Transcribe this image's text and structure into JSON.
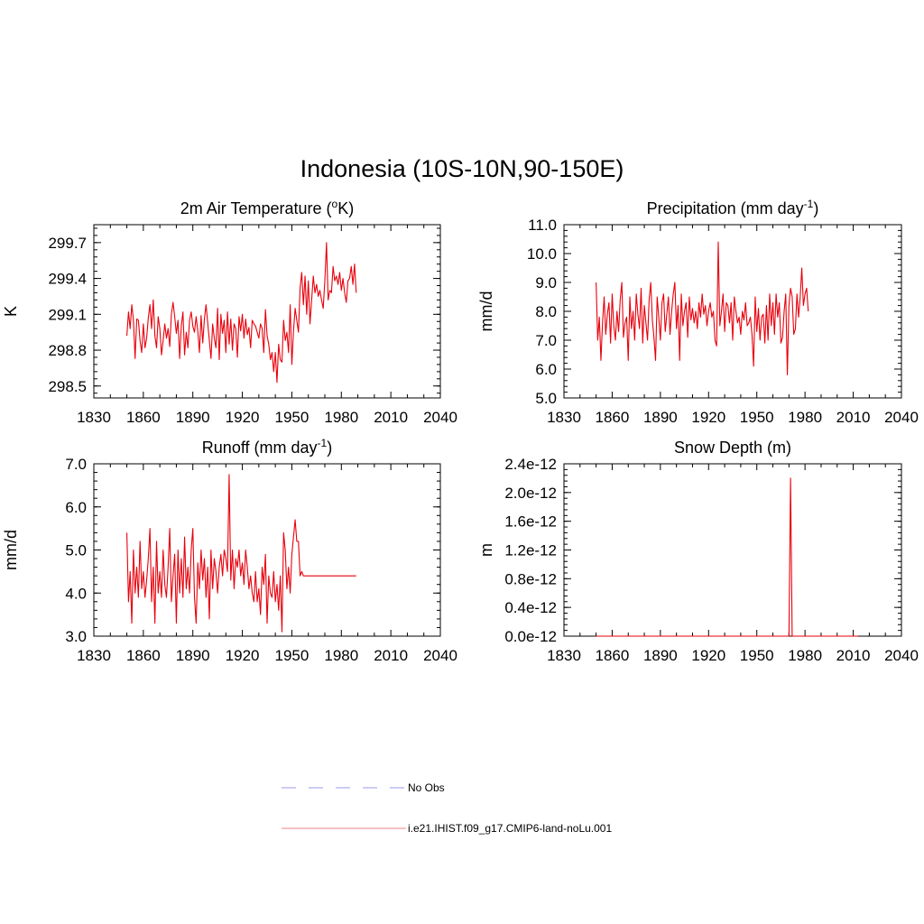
{
  "figure": {
    "title": "Indonesia (10S-10N,90-150E)"
  },
  "legend": {
    "entries": [
      {
        "label": "No Obs",
        "color": "#9999ee",
        "style": "dashed"
      },
      {
        "label": "i.e21.IHIST.f09_g17.CMIP6-land-noLu.001",
        "color": "#f08080",
        "style": "solid"
      }
    ]
  },
  "chart_data": [
    {
      "type": "line",
      "title": "2m Air Temperature (",
      "title_unit": "K)",
      "title_sup": "o",
      "xlabel": "",
      "ylabel": "K",
      "xlim": [
        1830,
        2040
      ],
      "ylim": [
        298.4,
        299.85
      ],
      "xticks": [
        1830,
        1860,
        1890,
        1920,
        1950,
        1980,
        2010,
        2040
      ],
      "yticks": [
        298.5,
        298.8,
        299.1,
        299.4,
        299.7
      ],
      "ytick_labels": [
        "298.5",
        "298.8",
        "299.1",
        "299.4",
        "299.7"
      ],
      "grid": false,
      "series": [
        {
          "color": "#e8000b",
          "x_start": 1850,
          "values": [
            298.92,
            299.12,
            298.98,
            299.18,
            299.05,
            298.73,
            299.06,
            299.05,
            298.88,
            298.78,
            299.02,
            298.82,
            298.9,
            299.07,
            299.18,
            298.98,
            299.22,
            298.92,
            298.82,
            299.08,
            298.98,
            298.76,
            298.88,
            299.02,
            298.9,
            298.98,
            298.83,
            299.1,
            299.2,
            299.08,
            298.94,
            299.05,
            298.73,
            299.0,
            299.12,
            298.76,
            298.95,
            298.82,
            299.05,
            299.12,
            299.0,
            298.95,
            299.08,
            298.96,
            298.78,
            299.09,
            298.86,
            299.06,
            299.18,
            299.03,
            298.88,
            298.73,
            299.02,
            298.9,
            298.82,
            299.15,
            298.72,
            299.1,
            298.94,
            299.05,
            298.78,
            299.12,
            298.85,
            299.06,
            298.8,
            299.02,
            298.98,
            298.74,
            299.08,
            298.96,
            299.1,
            298.9,
            299.06,
            298.93,
            298.99,
            298.82,
            299.05,
            299.02,
            299.0,
            298.95,
            298.9,
            299.02,
            298.98,
            298.78,
            299.14,
            298.92,
            298.85,
            298.72,
            298.78,
            298.62,
            298.78,
            298.53,
            298.85,
            298.72,
            298.7,
            299.05,
            298.88,
            298.95,
            298.78,
            299.18,
            298.68,
            298.96,
            299.15,
            299.05,
            298.95,
            299.32,
            299.45,
            299.18,
            299.42,
            299.1,
            299.38,
            299.02,
            299.22,
            299.42,
            299.28,
            299.35,
            299.25,
            299.3,
            299.22,
            299.15,
            299.38,
            299.7,
            299.22,
            299.3,
            299.28,
            299.5,
            299.38,
            299.42,
            299.35,
            299.45,
            299.3,
            299.4,
            299.28,
            299.2,
            299.38,
            299.4,
            299.5,
            299.35,
            299.52,
            299.28
          ]
        }
      ]
    },
    {
      "type": "line",
      "title": "Precipitation (mm day",
      "title_unit": ")",
      "title_sup": "-1",
      "xlabel": "",
      "ylabel": "mm/d",
      "xlim": [
        1830,
        2040
      ],
      "ylim": [
        5.0,
        11.0
      ],
      "xticks": [
        1830,
        1860,
        1890,
        1920,
        1950,
        1980,
        2010,
        2040
      ],
      "yticks": [
        5.0,
        6.0,
        7.0,
        8.0,
        9.0,
        10.0,
        11.0
      ],
      "ytick_labels": [
        "5.0",
        "6.0",
        "7.0",
        "8.0",
        "9.0",
        "10.0",
        "11.0"
      ],
      "grid": false,
      "series": [
        {
          "color": "#e8000b",
          "x_start": 1850,
          "values": [
            9.0,
            7.0,
            7.8,
            6.3,
            7.6,
            8.5,
            7.2,
            7.9,
            8.3,
            6.9,
            8.6,
            7.5,
            7.0,
            8.0,
            7.3,
            8.4,
            9.0,
            7.1,
            7.6,
            7.8,
            6.3,
            8.5,
            7.4,
            8.0,
            7.0,
            8.6,
            7.9,
            7.4,
            8.8,
            6.9,
            8.2,
            7.6,
            7.0,
            8.4,
            9.0,
            7.7,
            7.1,
            6.3,
            8.5,
            7.8,
            7.0,
            8.3,
            8.6,
            7.3,
            7.9,
            8.5,
            7.2,
            8.0,
            8.6,
            9.0,
            7.4,
            8.2,
            6.3,
            8.6,
            7.5,
            8.0,
            8.3,
            7.1,
            8.5,
            7.7,
            8.1,
            7.6,
            8.0,
            7.4,
            8.3,
            7.8,
            8.6,
            7.9,
            8.2,
            7.5,
            8.0,
            8.3,
            7.8,
            8.0,
            7.0,
            6.8,
            10.4,
            7.5,
            8.0,
            8.6,
            7.3,
            8.3,
            8.2,
            7.6,
            8.3,
            7.0,
            8.5,
            8.0,
            7.6,
            7.8,
            7.2,
            8.0,
            7.7,
            8.3,
            7.5,
            7.6,
            7.8,
            7.2,
            6.1,
            8.5,
            7.3,
            8.1,
            7.0,
            7.8,
            7.9,
            6.9,
            8.2,
            7.0,
            8.6,
            7.5,
            8.3,
            7.2,
            8.6,
            7.8,
            8.3,
            6.9,
            7.1,
            8.0,
            8.6,
            5.8,
            8.2,
            8.8,
            8.5,
            7.2,
            7.4,
            8.6,
            7.8,
            8.5,
            9.5,
            8.2,
            8.6,
            8.8,
            8.0
          ]
        }
      ]
    },
    {
      "type": "line",
      "title": "Runoff (mm day",
      "title_unit": ")",
      "title_sup": "-1",
      "xlabel": "",
      "ylabel": "mm/d",
      "xlim": [
        1830,
        2040
      ],
      "ylim": [
        3.0,
        7.0
      ],
      "xticks": [
        1830,
        1860,
        1890,
        1920,
        1950,
        1980,
        2010,
        2040
      ],
      "yticks": [
        3.0,
        4.0,
        5.0,
        6.0,
        7.0
      ],
      "ytick_labels": [
        "3.0",
        "4.0",
        "5.0",
        "6.0",
        "7.0"
      ],
      "grid": false,
      "series": [
        {
          "color": "#e8000b",
          "x_start": 1850,
          "values": [
            5.4,
            3.8,
            4.5,
            3.3,
            5.0,
            4.0,
            4.6,
            3.9,
            5.2,
            4.1,
            4.5,
            3.9,
            4.3,
            4.8,
            5.5,
            3.8,
            4.6,
            3.3,
            5.2,
            4.0,
            4.5,
            3.9,
            5.0,
            4.2,
            3.9,
            4.6,
            5.5,
            3.8,
            4.4,
            4.9,
            3.3,
            5.0,
            4.0,
            4.8,
            3.9,
            5.3,
            4.1,
            4.6,
            4.0,
            5.0,
            5.5,
            3.9,
            3.3,
            4.7,
            4.1,
            5.0,
            4.3,
            4.8,
            3.9,
            4.6,
            3.4,
            5.0,
            4.1,
            4.8,
            4.5,
            4.0,
            4.6,
            4.9,
            4.4,
            5.0,
            4.8,
            4.5,
            6.75,
            4.3,
            5.0,
            4.1,
            4.8,
            4.6,
            5.0,
            4.4,
            4.7,
            4.2,
            5.0,
            4.6,
            4.1,
            4.4,
            4.0,
            3.8,
            4.5,
            3.8,
            4.1,
            3.5,
            4.6,
            4.2,
            4.9,
            3.3,
            4.4,
            4.0,
            3.9,
            4.5,
            3.8,
            4.2,
            3.6,
            4.4,
            3.1,
            5.4,
            5.0,
            4.1,
            4.6,
            4.0,
            4.9,
            5.3,
            5.7,
            5.2,
            5.2,
            4.4,
            4.5,
            4.4,
            4.4,
            4.4,
            4.4,
            4.4,
            4.4,
            4.4,
            4.4,
            4.4,
            4.4,
            4.4,
            4.4,
            4.4,
            4.4,
            4.4,
            4.4,
            4.4,
            4.4,
            4.4,
            4.4,
            4.4,
            4.4,
            4.4,
            4.4,
            4.4,
            4.4,
            4.4,
            4.4,
            4.4,
            4.4,
            4.4,
            4.4,
            4.4
          ]
        }
      ]
    },
    {
      "type": "line",
      "title": "Snow Depth (m)",
      "title_unit": "",
      "title_sup": "",
      "xlabel": "",
      "ylabel": "m",
      "xlim": [
        1830,
        2040
      ],
      "ylim": [
        0.0,
        2.4e-12
      ],
      "xticks": [
        1830,
        1860,
        1890,
        1920,
        1950,
        1980,
        2010,
        2040
      ],
      "yticks": [
        0.0,
        4e-13,
        8e-13,
        1.2e-12,
        1.6e-12,
        2e-12,
        2.4e-12
      ],
      "ytick_labels": [
        "0.0e-12",
        "0.4e-12",
        "0.8e-12",
        "1.2e-12",
        "1.6e-12",
        "2.0e-12",
        "2.4e-12"
      ],
      "grid": false,
      "series": [
        {
          "color": "#e8000b",
          "x": [
            1850,
            1970,
            1971,
            1972,
            2013
          ],
          "values": [
            0.0,
            0.0,
            2.2e-12,
            0.0,
            0.0
          ]
        }
      ]
    }
  ]
}
